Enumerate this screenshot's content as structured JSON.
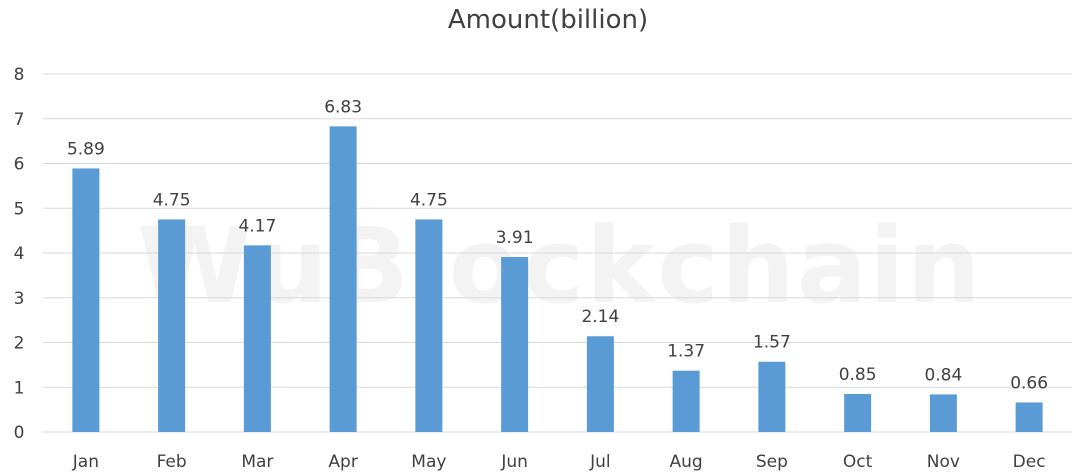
{
  "chart_data": {
    "type": "bar",
    "title": "Amount(billion)",
    "xlabel": "",
    "ylabel": "",
    "categories": [
      "Jan",
      "Feb",
      "Mar",
      "Apr",
      "May",
      "Jun",
      "Jul",
      "Aug",
      "Sep",
      "Oct",
      "Nov",
      "Dec"
    ],
    "values": [
      5.89,
      4.75,
      4.17,
      6.83,
      4.75,
      3.91,
      2.14,
      1.37,
      1.57,
      0.85,
      0.84,
      0.66
    ],
    "value_labels": [
      "5.89",
      "4.75",
      "4.17",
      "6.83",
      "4.75",
      "3.91",
      "2.14",
      "1.37",
      "1.57",
      "0.85",
      "0.84",
      "0.66"
    ],
    "ylim": [
      0,
      8
    ],
    "yticks": [
      "0",
      "1",
      "2",
      "3",
      "4",
      "5",
      "6",
      "7",
      "8"
    ],
    "grid": true,
    "legend": "none",
    "bar_color": "#5b9bd5",
    "watermark": "WuBlockchain"
  }
}
